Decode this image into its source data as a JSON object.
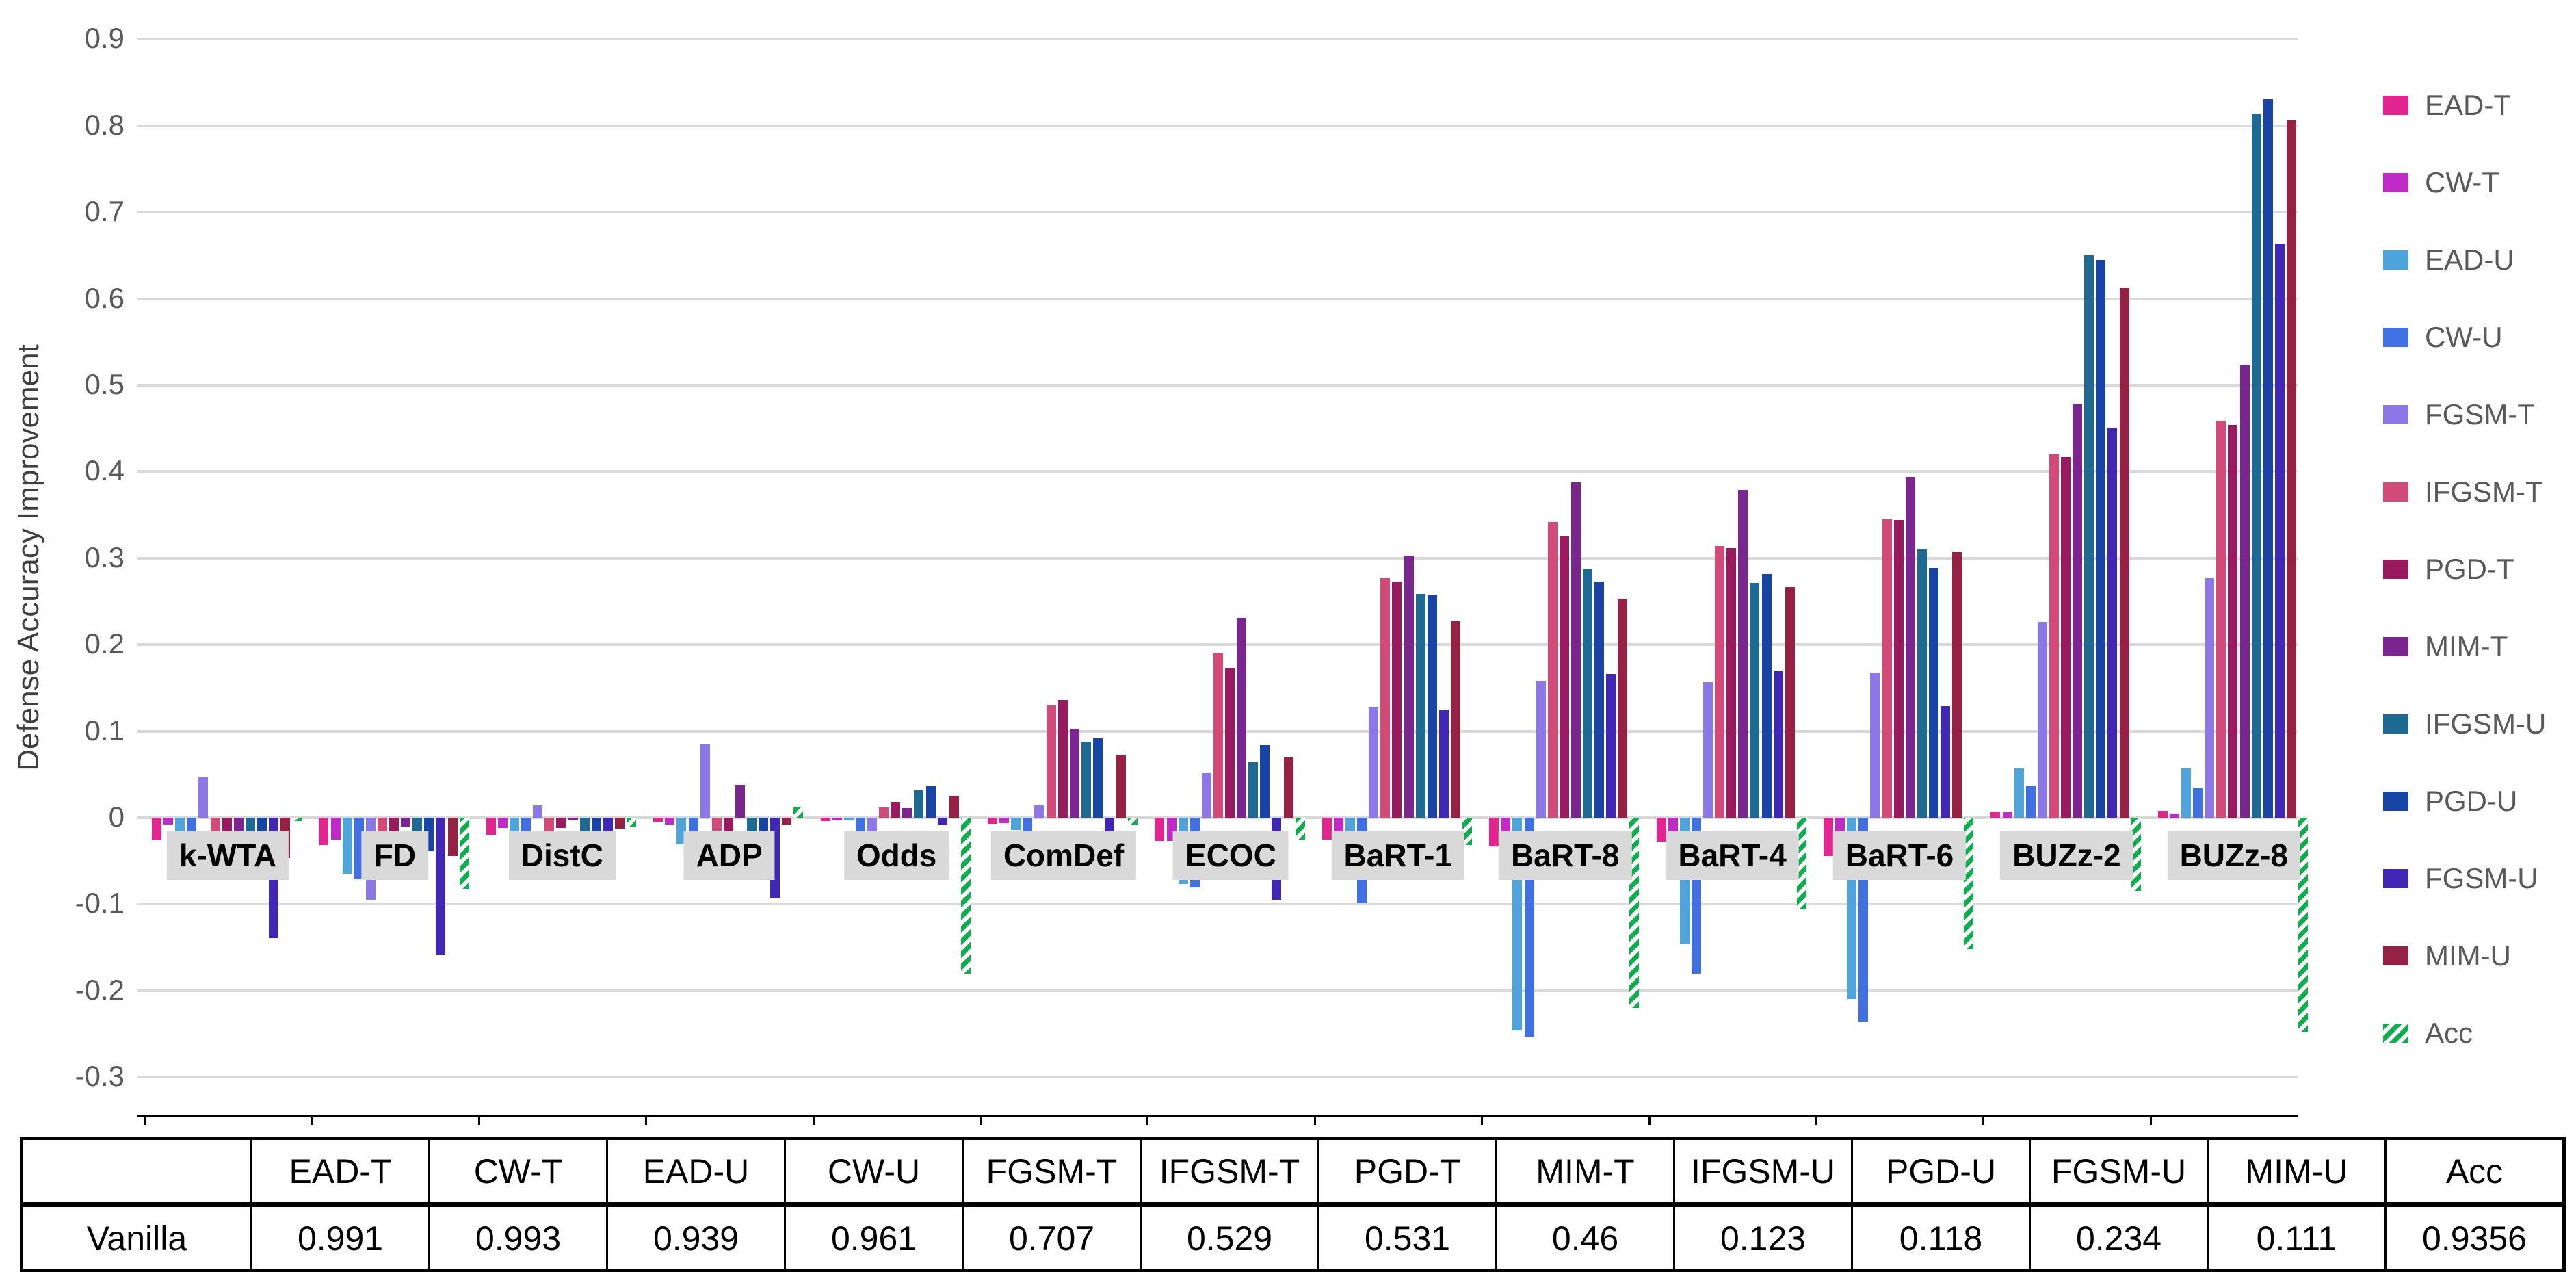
{
  "chart_data": {
    "type": "bar",
    "title": "",
    "xlabel": "",
    "ylabel": "Defense Accuracy Improvement",
    "ylim": [
      -0.3,
      0.9
    ],
    "ytick_step": 0.1,
    "grid": true,
    "legend_position": "right",
    "categories": [
      "k-WTA",
      "FD",
      "DistC",
      "ADP",
      "Odds",
      "ComDef",
      "ECOC",
      "BaRT-1",
      "BaRT-8",
      "BaRT-4",
      "BaRT-6",
      "BUZz-2",
      "BUZz-8"
    ],
    "series": [
      {
        "name": "EAD-T",
        "color": "#E2258F",
        "striped": false,
        "values": [
          -0.026,
          -0.032,
          -0.02,
          -0.005,
          -0.004,
          -0.007,
          -0.027,
          -0.025,
          -0.033,
          -0.028,
          -0.044,
          0.007,
          0.008
        ]
      },
      {
        "name": "CW-T",
        "color": "#C02BC7",
        "striped": false,
        "values": [
          -0.008,
          -0.025,
          -0.012,
          -0.008,
          -0.003,
          -0.006,
          -0.027,
          -0.016,
          -0.017,
          -0.016,
          -0.017,
          0.006,
          0.005
        ]
      },
      {
        "name": "EAD-U",
        "color": "#4FA5DB",
        "striped": false,
        "values": [
          -0.019,
          -0.065,
          -0.026,
          -0.031,
          -0.003,
          -0.014,
          -0.077,
          -0.019,
          -0.246,
          -0.146,
          -0.21,
          0.057,
          0.057
        ]
      },
      {
        "name": "CW-U",
        "color": "#4170E2",
        "striped": false,
        "values": [
          -0.02,
          -0.071,
          -0.019,
          -0.019,
          -0.017,
          -0.02,
          -0.081,
          -0.099,
          -0.253,
          -0.18,
          -0.236,
          0.037,
          0.034
        ]
      },
      {
        "name": "FGSM-T",
        "color": "#8C77E6",
        "striped": false,
        "values": [
          0.047,
          -0.095,
          0.014,
          0.085,
          -0.018,
          0.014,
          0.052,
          0.128,
          0.158,
          0.157,
          0.168,
          0.226,
          0.277
        ]
      },
      {
        "name": "IFGSM-T",
        "color": "#D14A78",
        "striped": false,
        "values": [
          -0.031,
          -0.019,
          -0.017,
          -0.015,
          0.012,
          0.13,
          0.191,
          0.277,
          0.342,
          0.314,
          0.345,
          0.42,
          0.459
        ]
      },
      {
        "name": "PGD-T",
        "color": "#9A1A60",
        "striped": false,
        "values": [
          -0.017,
          -0.017,
          -0.012,
          -0.016,
          0.018,
          0.136,
          0.173,
          0.273,
          0.325,
          0.312,
          0.344,
          0.417,
          0.454
        ]
      },
      {
        "name": "MIM-T",
        "color": "#7B2590",
        "striped": false,
        "values": [
          -0.02,
          -0.01,
          -0.003,
          0.038,
          0.011,
          0.103,
          0.231,
          0.303,
          0.388,
          0.379,
          0.394,
          0.478,
          0.524
        ]
      },
      {
        "name": "IFGSM-U",
        "color": "#1F6A93",
        "striped": false,
        "values": [
          -0.018,
          -0.033,
          -0.016,
          -0.02,
          0.032,
          0.088,
          0.064,
          0.259,
          0.287,
          0.271,
          0.311,
          0.65,
          0.814
        ]
      },
      {
        "name": "PGD-U",
        "color": "#1845A5",
        "striped": false,
        "values": [
          -0.016,
          -0.039,
          -0.018,
          -0.018,
          0.037,
          0.092,
          0.084,
          0.257,
          0.273,
          0.282,
          0.289,
          0.645,
          0.831
        ]
      },
      {
        "name": "FGSM-U",
        "color": "#4128B4",
        "striped": false,
        "values": [
          -0.139,
          -0.158,
          -0.048,
          -0.093,
          -0.009,
          -0.02,
          -0.095,
          0.125,
          0.166,
          0.169,
          0.129,
          0.451,
          0.664
        ]
      },
      {
        "name": "MIM-U",
        "color": "#962144",
        "striped": false,
        "values": [
          -0.047,
          -0.044,
          -0.013,
          -0.008,
          0.025,
          0.073,
          0.07,
          0.227,
          0.253,
          0.267,
          0.307,
          0.612,
          0.806
        ]
      },
      {
        "name": "Acc",
        "color": "#0EAD4E",
        "striped": true,
        "values": [
          -0.004,
          -0.082,
          -0.01,
          0.013,
          -0.18,
          -0.008,
          -0.025,
          -0.032,
          -0.22,
          -0.105,
          -0.152,
          -0.085,
          -0.248
        ]
      }
    ]
  },
  "table": {
    "row_label": "Vanilla",
    "columns": [
      "EAD-T",
      "CW-T",
      "EAD-U",
      "CW-U",
      "FGSM-T",
      "IFGSM-T",
      "PGD-T",
      "MIM-T",
      "IFGSM-U",
      "PGD-U",
      "FGSM-U",
      "MIM-U",
      "Acc"
    ],
    "values": [
      "0.991",
      "0.993",
      "0.939",
      "0.961",
      "0.707",
      "0.529",
      "0.531",
      "0.46",
      "0.123",
      "0.118",
      "0.234",
      "0.111",
      "0.9356"
    ]
  }
}
